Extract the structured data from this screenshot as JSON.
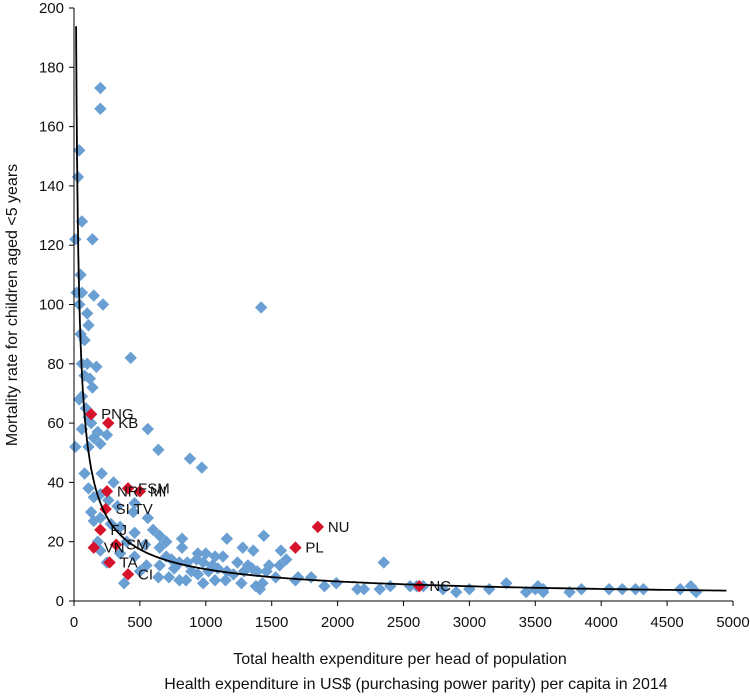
{
  "chart_data": {
    "type": "scatter",
    "xlabel": "Total health expenditure per head of population",
    "xlabel2": "Health expenditure in US$ (purchasing power parity) per capita in 2014",
    "ylabel": "Mortality rate for children aged <5 years",
    "xlim": [
      0,
      5000
    ],
    "ylim": [
      0,
      200
    ],
    "x_ticks": [
      0,
      500,
      1000,
      1500,
      2000,
      2500,
      3000,
      3500,
      4000,
      4500,
      5000
    ],
    "y_ticks": [
      0,
      20,
      40,
      60,
      80,
      100,
      120,
      140,
      160,
      180,
      200
    ],
    "grid": false,
    "colors": {
      "other": "#6a9fd3",
      "highlight": "#d7132c",
      "trend": "#000000"
    },
    "trend_line": {
      "type": "power",
      "a": 1350,
      "b": -0.7
    },
    "series": [
      {
        "points": [
          [
            200,
            173
          ],
          [
            200,
            166
          ],
          [
            40,
            152
          ],
          [
            30,
            143
          ],
          [
            60,
            128
          ],
          [
            140,
            122
          ],
          [
            10,
            122
          ],
          [
            50,
            110
          ],
          [
            20,
            104
          ],
          [
            60,
            104
          ],
          [
            150,
            103
          ],
          [
            220,
            100
          ],
          [
            40,
            100
          ],
          [
            100,
            97
          ],
          [
            1420,
            99
          ],
          [
            110,
            93
          ],
          [
            50,
            90
          ],
          [
            80,
            88
          ],
          [
            430,
            82
          ],
          [
            100,
            80
          ],
          [
            60,
            80
          ],
          [
            170,
            79
          ],
          [
            80,
            76
          ],
          [
            120,
            75
          ],
          [
            140,
            72
          ],
          [
            60,
            69
          ],
          [
            40,
            68
          ],
          [
            90,
            65
          ],
          [
            110,
            62
          ],
          [
            130,
            60
          ],
          [
            60,
            58
          ],
          [
            180,
            57
          ],
          [
            250,
            56
          ],
          [
            150,
            55
          ],
          [
            560,
            58
          ],
          [
            200,
            53
          ],
          [
            10,
            52
          ],
          [
            110,
            52
          ],
          [
            640,
            51
          ],
          [
            880,
            48
          ],
          [
            970,
            45
          ],
          [
            80,
            43
          ],
          [
            210,
            43
          ],
          [
            300,
            40
          ],
          [
            110,
            38
          ],
          [
            200,
            36
          ],
          [
            150,
            35
          ],
          [
            260,
            34
          ],
          [
            460,
            33
          ],
          [
            330,
            32
          ],
          [
            130,
            30
          ],
          [
            450,
            30
          ],
          [
            200,
            28
          ],
          [
            560,
            28
          ],
          [
            150,
            27
          ],
          [
            280,
            26
          ],
          [
            350,
            25
          ],
          [
            600,
            24
          ],
          [
            460,
            23
          ],
          [
            650,
            22
          ],
          [
            700,
            20
          ],
          [
            820,
            21
          ],
          [
            1160,
            21
          ],
          [
            1440,
            22
          ],
          [
            180,
            20
          ],
          [
            400,
            20
          ],
          [
            540,
            19
          ],
          [
            650,
            18
          ],
          [
            820,
            18
          ],
          [
            940,
            16
          ],
          [
            1000,
            16
          ],
          [
            1070,
            15
          ],
          [
            1130,
            15
          ],
          [
            1280,
            18
          ],
          [
            1360,
            17
          ],
          [
            1570,
            17
          ],
          [
            1610,
            14
          ],
          [
            200,
            17
          ],
          [
            350,
            16
          ],
          [
            460,
            15
          ],
          [
            700,
            15
          ],
          [
            740,
            14
          ],
          [
            800,
            13
          ],
          [
            860,
            13
          ],
          [
            930,
            14
          ],
          [
            980,
            13
          ],
          [
            1050,
            12
          ],
          [
            1240,
            13
          ],
          [
            1320,
            12
          ],
          [
            1480,
            12
          ],
          [
            1560,
            12
          ],
          [
            2350,
            13
          ],
          [
            250,
            13
          ],
          [
            550,
            12
          ],
          [
            650,
            12
          ],
          [
            760,
            11
          ],
          [
            890,
            10
          ],
          [
            940,
            9
          ],
          [
            1020,
            10
          ],
          [
            1090,
            11
          ],
          [
            1160,
            10
          ],
          [
            1210,
            9
          ],
          [
            1290,
            10
          ],
          [
            1350,
            11
          ],
          [
            1390,
            10
          ],
          [
            1460,
            10
          ],
          [
            1530,
            8
          ],
          [
            1700,
            8
          ],
          [
            1800,
            8
          ],
          [
            500,
            10
          ],
          [
            380,
            6
          ],
          [
            640,
            8
          ],
          [
            720,
            8
          ],
          [
            800,
            7
          ],
          [
            850,
            7
          ],
          [
            980,
            6
          ],
          [
            1070,
            7
          ],
          [
            1150,
            7
          ],
          [
            1270,
            6
          ],
          [
            1430,
            6
          ],
          [
            1680,
            7
          ],
          [
            1990,
            6
          ],
          [
            2200,
            4
          ],
          [
            2320,
            4
          ],
          [
            2400,
            5
          ],
          [
            2550,
            5
          ],
          [
            2600,
            5
          ],
          [
            2800,
            4
          ],
          [
            1410,
            4
          ],
          [
            1380,
            5
          ],
          [
            1900,
            5
          ],
          [
            2150,
            4
          ],
          [
            2650,
            5
          ],
          [
            2900,
            3
          ],
          [
            3000,
            4
          ],
          [
            3150,
            4
          ],
          [
            3280,
            6
          ],
          [
            3430,
            3
          ],
          [
            3500,
            4
          ],
          [
            3560,
            3
          ],
          [
            3760,
            3
          ],
          [
            3850,
            4
          ],
          [
            4060,
            4
          ],
          [
            4160,
            4
          ],
          [
            4260,
            4
          ],
          [
            4320,
            4
          ],
          [
            4600,
            4
          ],
          [
            4680,
            5
          ],
          [
            4720,
            3
          ],
          [
            3520,
            5
          ],
          [
            3560,
            4
          ]
        ]
      },
      {
        "highlighted": true,
        "points": [
          [
            130,
            63
          ],
          [
            260,
            60
          ],
          [
            410,
            38
          ],
          [
            500,
            37
          ],
          [
            250,
            37
          ],
          [
            240,
            31
          ],
          [
            200,
            24
          ],
          [
            150,
            18
          ],
          [
            320,
            19
          ],
          [
            270,
            13
          ],
          [
            410,
            9
          ],
          [
            1680,
            18
          ],
          [
            1850,
            25
          ],
          [
            2620,
            5
          ]
        ],
        "labels": [
          "PNG",
          "KB",
          "FSM",
          "MI",
          "NR",
          "SI",
          "FJ",
          "VN",
          "SM",
          "TA",
          "CI",
          "PL",
          "NU",
          "NC"
        ]
      }
    ],
    "annotations": [
      {
        "text": "PNG",
        "point": 0
      },
      {
        "text": "KB",
        "point": 1
      },
      {
        "text": "FSM",
        "point": 2
      },
      {
        "text": "MI",
        "point": 3
      },
      {
        "text": "NR",
        "point": 4
      },
      {
        "text": "SI",
        "point": 5
      },
      {
        "text": "TV",
        "point": 5,
        "offset_word": "right"
      },
      {
        "text": "FJ",
        "point": 6
      },
      {
        "text": "VN",
        "point": 7
      },
      {
        "text": "SM",
        "point": 8
      },
      {
        "text": "TA",
        "point": 9
      },
      {
        "text": "CI",
        "point": 10
      },
      {
        "text": "PL",
        "point": 11
      },
      {
        "text": "NU",
        "point": 12
      },
      {
        "text": "NC",
        "point": 13
      }
    ]
  }
}
